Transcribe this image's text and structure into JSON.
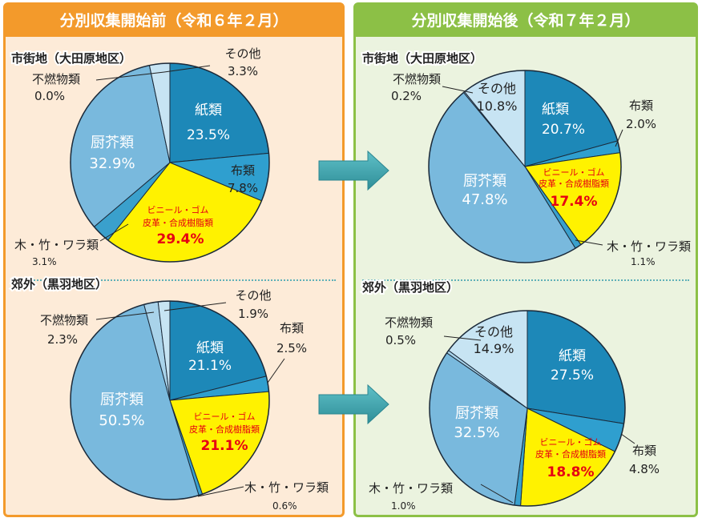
{
  "colors": {
    "paper": "#1d88b8",
    "cloth": "#2f9fcf",
    "plastic": "#fff200",
    "wood": "#3aa0cc",
    "kitchen": "#79b9dd",
    "nonburn": "#a9d3ea",
    "other": "#c7e4f3",
    "plastic_text": "#e60012",
    "label_text": "#222222",
    "left_accent": "#f39a2b",
    "right_accent": "#8cc046"
  },
  "headers": {
    "before": "分別収集開始前（令和６年２月）",
    "after": "分別収集開始後（令和７年２月）"
  },
  "chart_data": [
    {
      "type": "pie",
      "title": "市街地（大田原地区）",
      "period": "before",
      "slices": [
        {
          "key": "paper",
          "name": "紙類",
          "value": 23.5,
          "label": "23.5%"
        },
        {
          "key": "cloth",
          "name": "布類",
          "value": 7.8,
          "label": "7.8%"
        },
        {
          "key": "plastic",
          "name": "ビニール・ゴム",
          "name2": "皮革・合成樹脂類",
          "value": 29.4,
          "label": "29.4%"
        },
        {
          "key": "wood",
          "name": "木・竹・ワラ類",
          "value": 3.1,
          "label": "3.1%"
        },
        {
          "key": "kitchen",
          "name": "厨芥類",
          "value": 32.9,
          "label": "32.9%"
        },
        {
          "key": "nonburn",
          "name": "不燃物類",
          "value": 0.0,
          "label": "0.0%"
        },
        {
          "key": "other",
          "name": "その他",
          "value": 3.3,
          "label": "3.3%"
        }
      ]
    },
    {
      "type": "pie",
      "title": "市街地（大田原地区）",
      "period": "after",
      "slices": [
        {
          "key": "paper",
          "name": "紙類",
          "value": 20.7,
          "label": "20.7%"
        },
        {
          "key": "cloth",
          "name": "布類",
          "value": 2.0,
          "label": "2.0%"
        },
        {
          "key": "plastic",
          "name": "ビニール・ゴム",
          "name2": "皮革・合成樹脂類",
          "value": 17.4,
          "label": "17.4%"
        },
        {
          "key": "wood",
          "name": "木・竹・ワラ類",
          "value": 1.1,
          "label": "1.1%"
        },
        {
          "key": "kitchen",
          "name": "厨芥類",
          "value": 47.8,
          "label": "47.8%"
        },
        {
          "key": "nonburn",
          "name": "不燃物類",
          "value": 0.2,
          "label": "0.2%"
        },
        {
          "key": "other",
          "name": "その他",
          "value": 10.8,
          "label": "10.8%"
        }
      ]
    },
    {
      "type": "pie",
      "title": "郊外（黒羽地区）",
      "period": "before",
      "slices": [
        {
          "key": "paper",
          "name": "紙類",
          "value": 21.1,
          "label": "21.1%"
        },
        {
          "key": "cloth",
          "name": "布類",
          "value": 2.5,
          "label": "2.5%"
        },
        {
          "key": "plastic",
          "name": "ビニール・ゴム",
          "name2": "皮革・合成樹脂類",
          "value": 21.1,
          "label": "21.1%"
        },
        {
          "key": "wood",
          "name": "木・竹・ワラ類",
          "value": 0.6,
          "label": "0.6%"
        },
        {
          "key": "kitchen",
          "name": "厨芥類",
          "value": 50.5,
          "label": "50.5%"
        },
        {
          "key": "nonburn",
          "name": "不燃物類",
          "value": 2.3,
          "label": "2.3%"
        },
        {
          "key": "other",
          "name": "その他",
          "value": 1.9,
          "label": "1.9%"
        }
      ]
    },
    {
      "type": "pie",
      "title": "郊外（黒羽地区）",
      "period": "after",
      "slices": [
        {
          "key": "paper",
          "name": "紙類",
          "value": 27.5,
          "label": "27.5%"
        },
        {
          "key": "cloth",
          "name": "布類",
          "value": 4.8,
          "label": "4.8%"
        },
        {
          "key": "plastic",
          "name": "ビニール・ゴム",
          "name2": "皮革・合成樹脂類",
          "value": 18.8,
          "label": "18.8%"
        },
        {
          "key": "wood",
          "name": "木・竹・ワラ類",
          "value": 1.0,
          "label": "1.0%"
        },
        {
          "key": "kitchen",
          "name": "厨芥類",
          "value": 32.5,
          "label": "32.5%"
        },
        {
          "key": "nonburn",
          "name": "不燃物類",
          "value": 0.5,
          "label": "0.5%"
        },
        {
          "key": "other",
          "name": "その他",
          "value": 14.9,
          "label": "14.9%"
        }
      ]
    }
  ]
}
